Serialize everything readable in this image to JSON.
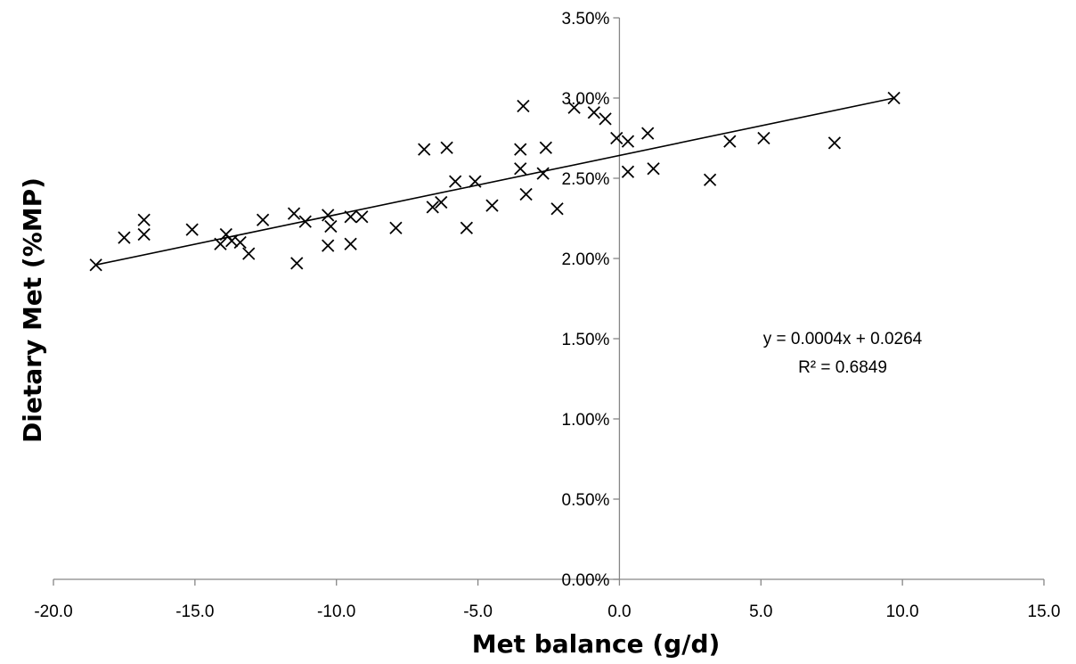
{
  "chart_data": {
    "type": "scatter",
    "xlabel": "Met balance (g/d)",
    "ylabel": "Dietary Met (%MP)",
    "xlim": [
      -20,
      15
    ],
    "ylim": [
      0,
      0.035
    ],
    "x_ticks": [
      "-20.0",
      "-15.0",
      "-10.0",
      "-5.0",
      "0.0",
      "5.0",
      "10.0",
      "15.0"
    ],
    "y_ticks": [
      "0.00%",
      "0.50%",
      "1.00%",
      "1.50%",
      "2.00%",
      "2.50%",
      "3.00%",
      "3.50%"
    ],
    "marker": "x",
    "marker_color": "#000000",
    "grid": false,
    "points": [
      [
        -18.5,
        0.0196
      ],
      [
        -17.5,
        0.0213
      ],
      [
        -16.8,
        0.0224
      ],
      [
        -16.8,
        0.0215
      ],
      [
        -15.1,
        0.0218
      ],
      [
        -14.1,
        0.0209
      ],
      [
        -13.9,
        0.0215
      ],
      [
        -13.7,
        0.0211
      ],
      [
        -13.4,
        0.021
      ],
      [
        -13.1,
        0.0203
      ],
      [
        -12.6,
        0.0224
      ],
      [
        -11.5,
        0.0228
      ],
      [
        -11.4,
        0.0197
      ],
      [
        -11.1,
        0.0223
      ],
      [
        -10.3,
        0.0227
      ],
      [
        -10.3,
        0.0208
      ],
      [
        -10.2,
        0.022
      ],
      [
        -9.5,
        0.0226
      ],
      [
        -9.5,
        0.0209
      ],
      [
        -9.1,
        0.0226
      ],
      [
        -7.9,
        0.0219
      ],
      [
        -6.9,
        0.0268
      ],
      [
        -6.6,
        0.0232
      ],
      [
        -6.3,
        0.0235
      ],
      [
        -6.1,
        0.0269
      ],
      [
        -5.8,
        0.0248
      ],
      [
        -5.4,
        0.0219
      ],
      [
        -5.1,
        0.0248
      ],
      [
        -4.5,
        0.0233
      ],
      [
        -3.5,
        0.0268
      ],
      [
        -3.5,
        0.0256
      ],
      [
        -3.4,
        0.0295
      ],
      [
        -3.3,
        0.024
      ],
      [
        -2.7,
        0.0253
      ],
      [
        -2.6,
        0.0269
      ],
      [
        -2.2,
        0.0231
      ],
      [
        -1.6,
        0.0294
      ],
      [
        -0.9,
        0.0291
      ],
      [
        -0.5,
        0.0287
      ],
      [
        -0.1,
        0.0275
      ],
      [
        0.3,
        0.0273
      ],
      [
        0.3,
        0.0254
      ],
      [
        1.0,
        0.0278
      ],
      [
        1.2,
        0.0256
      ],
      [
        3.2,
        0.0249
      ],
      [
        3.9,
        0.0273
      ],
      [
        5.1,
        0.0275
      ],
      [
        7.6,
        0.0272
      ],
      [
        9.7,
        0.03
      ]
    ],
    "trendline": {
      "x": [
        -18.5,
        9.7
      ],
      "y": [
        0.0196,
        0.03
      ]
    },
    "annotations": [
      "y = 0.0004x + 0.0264",
      "R² = 0.6849"
    ]
  }
}
